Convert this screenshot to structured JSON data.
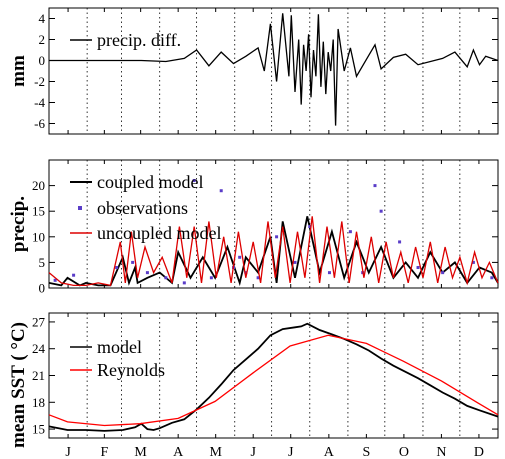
{
  "chart_data": [
    {
      "type": "line",
      "ylabel": "mm",
      "ylim": [
        -7,
        5
      ],
      "yticks": [
        -6,
        -4,
        -2,
        0,
        2,
        4
      ],
      "legend_position": "top-left",
      "series": [
        {
          "name": "precip. diff.",
          "color": "#000000",
          "x": [
            0,
            40,
            75,
            95,
            110,
            120,
            130,
            140,
            150,
            160,
            170,
            175,
            180,
            185,
            190,
            195,
            197,
            200,
            203,
            205,
            207,
            209,
            211,
            213,
            215,
            217,
            219,
            221,
            223,
            225,
            227,
            229,
            231,
            233,
            235,
            240,
            245,
            250,
            260,
            265,
            270,
            280,
            290,
            300,
            320,
            330,
            340,
            345,
            350,
            355,
            360,
            365
          ],
          "values": [
            0,
            0,
            0,
            -0.1,
            0.2,
            1.0,
            -0.5,
            0.8,
            -0.3,
            0.4,
            1.2,
            -1.0,
            3.5,
            -2.0,
            4.5,
            -1.5,
            4.3,
            -3.0,
            2.0,
            -4.2,
            1.5,
            -1.0,
            2.5,
            -3.5,
            1.0,
            -1.5,
            4.4,
            -2.5,
            1.8,
            -3.2,
            0.8,
            -1.0,
            2.0,
            -6.2,
            3.0,
            -1.0,
            1.2,
            -1.5,
            0.5,
            1.5,
            -0.8,
            0.3,
            0.6,
            -0.4,
            0.2,
            0.8,
            -0.6,
            1.0,
            -0.4,
            0.4,
            0.2,
            0
          ]
        }
      ]
    },
    {
      "type": "line",
      "ylabel": "precip.",
      "ylim": [
        0,
        25
      ],
      "yticks": [
        0,
        5,
        10,
        15,
        20
      ],
      "legend_position": "top-left",
      "series": [
        {
          "name": "coupled model",
          "color": "#000000",
          "x": [
            0,
            10,
            15,
            25,
            30,
            40,
            50,
            60,
            65,
            70,
            72,
            80,
            90,
            100,
            105,
            115,
            125,
            135,
            145,
            155,
            160,
            170,
            180,
            185,
            190,
            200,
            210,
            220,
            230,
            240,
            250,
            260,
            270,
            280,
            290,
            300,
            310,
            320,
            330,
            340,
            350,
            360,
            365
          ],
          "values": [
            1,
            0.5,
            2,
            0.5,
            1,
            0.5,
            0.5,
            6,
            1,
            4,
            1,
            2,
            3,
            1,
            7,
            2,
            6,
            2,
            8,
            1,
            6,
            3,
            10,
            1,
            13,
            2,
            14,
            3,
            11,
            2,
            9,
            3,
            8,
            2,
            5,
            2,
            7,
            3,
            5,
            1,
            4,
            3,
            1
          ]
        },
        {
          "name": "observations",
          "color": "#5a3dc8",
          "x": [
            5,
            20,
            55,
            68,
            80,
            95,
            110,
            118,
            132,
            140,
            150,
            155,
            160,
            170,
            185,
            200,
            212,
            228,
            245,
            255,
            265,
            270,
            285,
            300,
            320,
            345,
            360
          ],
          "values": [
            1.5,
            2.5,
            4,
            5,
            3,
            2,
            1,
            21,
            2,
            19,
            4,
            6,
            3,
            2,
            10,
            5,
            12,
            3,
            11,
            3,
            20,
            15,
            9,
            4,
            3,
            5,
            2
          ]
        },
        {
          "name": "uncoupled model",
          "color": "#dd0000",
          "x": [
            0,
            10,
            20,
            30,
            40,
            50,
            58,
            62,
            67,
            72,
            78,
            85,
            92,
            100,
            106,
            112,
            118,
            124,
            130,
            136,
            142,
            148,
            154,
            160,
            166,
            172,
            178,
            184,
            190,
            196,
            202,
            208,
            214,
            220,
            226,
            232,
            238,
            244,
            250,
            256,
            262,
            268,
            274,
            280,
            286,
            292,
            298,
            304,
            310,
            316,
            322,
            328,
            334,
            340,
            346,
            352,
            358,
            365
          ],
          "values": [
            3,
            1,
            0.5,
            0.5,
            1,
            0.5,
            9,
            1,
            11,
            2,
            8,
            3,
            6,
            1,
            12,
            2,
            12,
            1,
            13,
            2,
            10,
            1,
            11,
            2,
            9,
            1,
            13,
            2,
            12,
            1,
            11,
            2,
            14,
            1,
            12,
            2,
            13,
            1,
            11,
            2,
            10,
            1,
            9,
            2,
            7,
            1,
            8,
            2,
            9,
            1,
            8,
            2,
            6,
            1,
            7,
            2,
            5,
            1
          ]
        }
      ]
    },
    {
      "type": "line",
      "ylabel": "mean SST ( °C)",
      "ylim": [
        14,
        28
      ],
      "yticks": [
        15,
        18,
        21,
        24,
        27
      ],
      "legend_position": "top-left",
      "xlabel": "",
      "categories": [
        "J",
        "F",
        "M",
        "A",
        "M",
        "J",
        "J",
        "A",
        "S",
        "O",
        "N",
        "D"
      ],
      "series": [
        {
          "name": "model",
          "color": "#000000",
          "x": [
            0,
            15,
            30,
            45,
            60,
            70,
            75,
            80,
            85,
            90,
            100,
            110,
            120,
            130,
            140,
            150,
            160,
            170,
            180,
            190,
            200,
            205,
            210,
            220,
            230,
            240,
            250,
            260,
            270,
            280,
            290,
            300,
            310,
            320,
            330,
            340,
            350,
            365
          ],
          "values": [
            15.3,
            14.9,
            14.9,
            14.8,
            14.9,
            15.2,
            15.6,
            15.0,
            14.9,
            15.1,
            15.7,
            16.1,
            17.2,
            18.5,
            20.0,
            21.6,
            22.8,
            24.0,
            25.5,
            26.2,
            26.4,
            26.5,
            26.8,
            26.1,
            25.6,
            25.1,
            24.5,
            23.8,
            22.9,
            22.1,
            21.4,
            20.7,
            19.9,
            19.1,
            18.4,
            17.6,
            17.1,
            16.4
          ]
        },
        {
          "name": "Reynolds",
          "color": "#ff0000",
          "x": [
            0,
            15,
            45,
            74,
            105,
            135,
            166,
            196,
            227,
            258,
            288,
            319,
            349,
            365
          ],
          "values": [
            16.6,
            15.8,
            15.4,
            15.6,
            16.2,
            18.1,
            21.3,
            24.3,
            25.5,
            24.6,
            22.6,
            20.4,
            17.9,
            16.6
          ]
        }
      ]
    }
  ]
}
